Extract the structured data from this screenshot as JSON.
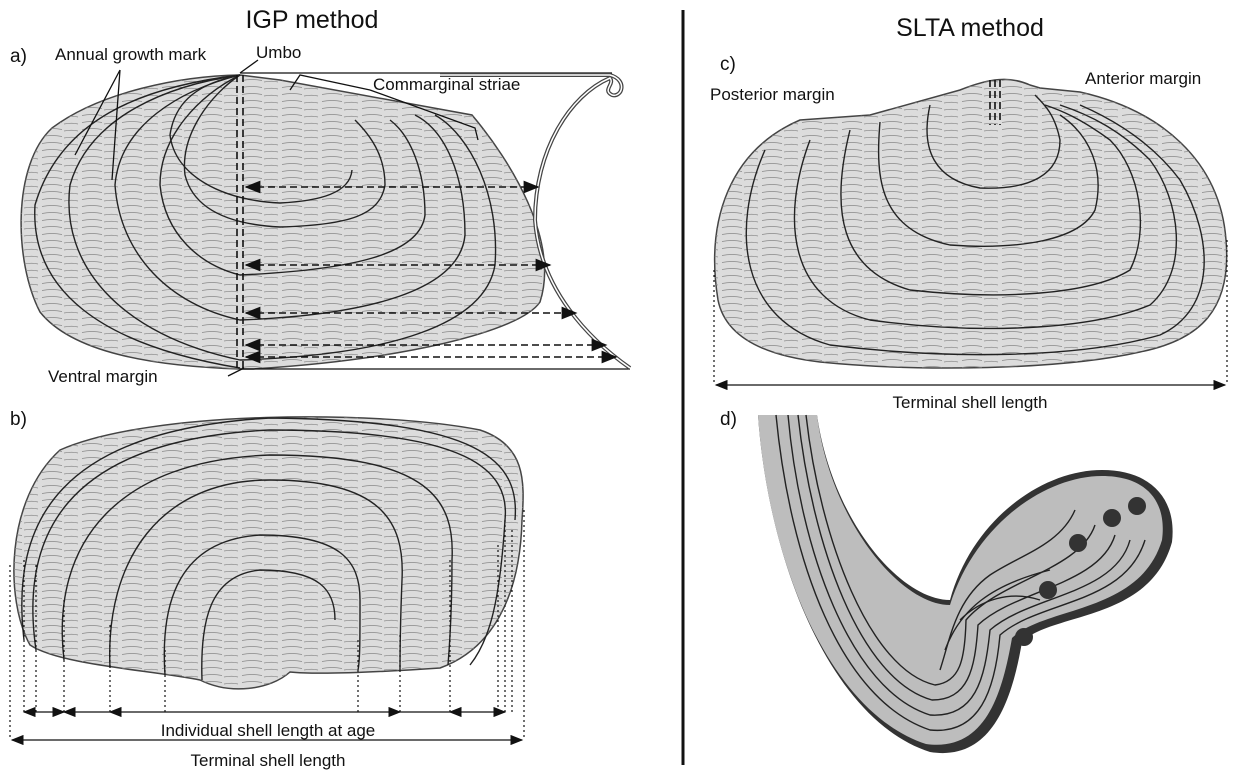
{
  "left": {
    "title": "IGP method",
    "panel_a": {
      "label": "a)",
      "annual_growth_mark": "Annual growth mark",
      "umbo": "Umbo",
      "commarginal_striae": "Commarginal striae",
      "ventral_margin": "Ventral margin"
    },
    "panel_b": {
      "label": "b)",
      "individual_length": "Individual shell length at age",
      "terminal_length": "Terminal shell length"
    }
  },
  "right": {
    "title": "SLTA method",
    "panel_c": {
      "label": "c)",
      "posterior_margin": "Posterior margin",
      "anterior_margin": "Anterior margin",
      "terminal_length": "Terminal shell length"
    },
    "panel_d": {
      "label": "d)"
    }
  }
}
